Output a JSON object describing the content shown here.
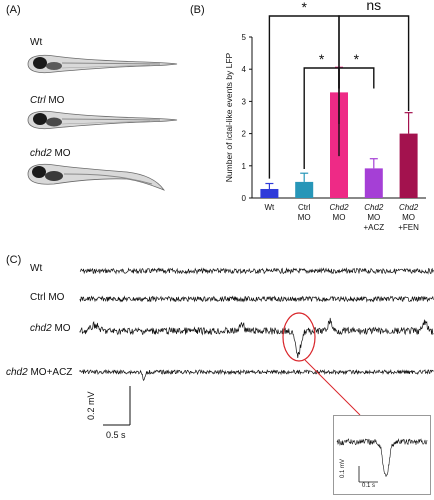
{
  "panels": {
    "a": "(A)",
    "b": "(B)",
    "c": "(C)"
  },
  "fish": [
    {
      "italic": "",
      "plain": "Wt"
    },
    {
      "italic": "Ctrl",
      "plain": " MO"
    },
    {
      "italic": "chd2",
      "plain": " MO"
    }
  ],
  "traces": [
    {
      "italic": "",
      "plain": "Wt"
    },
    {
      "italic": "",
      "plain": "Ctrl MO"
    },
    {
      "italic": "chd2",
      "plain": " MO"
    },
    {
      "italic": "chd2",
      "plain": " MO+ACZ"
    }
  ],
  "scalebar": {
    "voltage": "0.2 mV",
    "time": "0.5 s"
  },
  "inset": {
    "voltage": "0.1 mV",
    "time": "0.1 s"
  },
  "colors": {
    "wt": "#2f3bd9",
    "ctrl": "#2796b8",
    "chd2": "#ee2a86",
    "acz": "#a53fd6",
    "fen": "#a3124e",
    "circle": "#d9262b"
  },
  "chart_data": {
    "type": "bar",
    "ylabel": "Number of ictal-like events by LFP",
    "ylim": [
      0,
      5
    ],
    "yticks": [
      0,
      1,
      2,
      3,
      4,
      5
    ],
    "categories": [
      [
        "Wt"
      ],
      [
        "Ctrl",
        "MO"
      ],
      [
        "Chd2",
        "MO"
      ],
      [
        "Chd2",
        "MO",
        "+ACZ"
      ],
      [
        "Chd2",
        "MO",
        "+FEN"
      ]
    ],
    "values": [
      0.28,
      0.5,
      3.28,
      0.92,
      2.0
    ],
    "errors": [
      0.17,
      0.27,
      0.78,
      0.3,
      0.65
    ],
    "significance": [
      {
        "from": 0,
        "to": 2,
        "label": "*"
      },
      {
        "from": 2,
        "to": 4,
        "label": "ns"
      },
      {
        "from": 1,
        "to": 2,
        "label": "*"
      },
      {
        "from": 2,
        "to": 3,
        "label": "*"
      }
    ]
  }
}
